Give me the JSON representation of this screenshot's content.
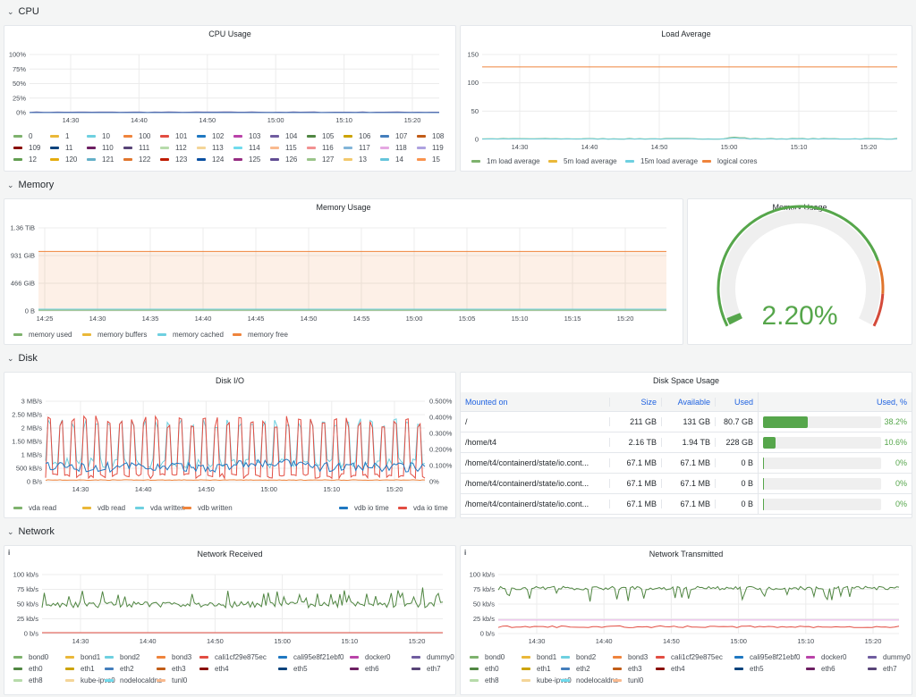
{
  "rows": {
    "cpu": "CPU",
    "memory": "Memory",
    "disk": "Disk",
    "network": "Network"
  },
  "cpu_usage": {
    "title": "CPU Usage",
    "yticks": [
      "100%",
      "75%",
      "50%",
      "25%",
      "0%"
    ],
    "xticks": [
      "14:30",
      "14:40",
      "14:50",
      "15:00",
      "15:10",
      "15:20"
    ],
    "legend": [
      [
        "0",
        "#7eb26d"
      ],
      [
        "1",
        "#eab839"
      ],
      [
        "10",
        "#6ed0e0"
      ],
      [
        "100",
        "#ef843c"
      ],
      [
        "101",
        "#e24d42"
      ],
      [
        "102",
        "#1f78c1"
      ],
      [
        "103",
        "#ba43a9"
      ],
      [
        "104",
        "#705da0"
      ],
      [
        "105",
        "#508642"
      ],
      [
        "106",
        "#cca300"
      ],
      [
        "107",
        "#447ebc"
      ],
      [
        "108",
        "#c15c17"
      ],
      [
        "109",
        "#890f02"
      ],
      [
        "11",
        "#0a437c"
      ],
      [
        "110",
        "#6d1f62"
      ],
      [
        "111",
        "#584477"
      ],
      [
        "112",
        "#b7dbab"
      ],
      [
        "113",
        "#f4d598"
      ],
      [
        "114",
        "#70dbed"
      ],
      [
        "115",
        "#f9ba8f"
      ],
      [
        "116",
        "#f29191"
      ],
      [
        "117",
        "#82b5d8"
      ],
      [
        "118",
        "#e5a8e2"
      ],
      [
        "119",
        "#aea2e0"
      ],
      [
        "12",
        "#629e51"
      ],
      [
        "120",
        "#e5ac0e"
      ],
      [
        "121",
        "#64b0c8"
      ],
      [
        "122",
        "#e0752d"
      ],
      [
        "123",
        "#bf1b00"
      ],
      [
        "124",
        "#0a50a1"
      ],
      [
        "125",
        "#962d82"
      ],
      [
        "126",
        "#614d93"
      ],
      [
        "127",
        "#9ac48a"
      ],
      [
        "13",
        "#f2c96d"
      ],
      [
        "14",
        "#65c5db"
      ],
      [
        "15",
        "#f9934e"
      ]
    ]
  },
  "load_average": {
    "title": "Load Average",
    "yticks": [
      "150",
      "100",
      "50",
      "0"
    ],
    "xticks": [
      "14:30",
      "14:40",
      "14:50",
      "15:00",
      "15:10",
      "15:20"
    ],
    "legend": [
      [
        "1m load average",
        "#7eb26d"
      ],
      [
        "5m load average",
        "#eab839"
      ],
      [
        "15m load average",
        "#6ed0e0"
      ],
      [
        "logical cores",
        "#ef843c"
      ]
    ]
  },
  "memory_usage": {
    "title": "Memory Usage",
    "yticks": [
      "1.36 TiB",
      "931 GiB",
      "466 GiB",
      "0 B"
    ],
    "xticks": [
      "14:25",
      "14:30",
      "14:35",
      "14:40",
      "14:45",
      "14:50",
      "14:55",
      "15:00",
      "15:05",
      "15:10",
      "15:15",
      "15:20"
    ],
    "legend": [
      [
        "memory used",
        "#7eb26d"
      ],
      [
        "memory buffers",
        "#eab839"
      ],
      [
        "memory cached",
        "#6ed0e0"
      ],
      [
        "memory free",
        "#ef843c"
      ]
    ]
  },
  "memory_gauge": {
    "title": "Memory Usage",
    "value": "2.20%",
    "fraction": 0.022,
    "colors": {
      "ok": "#56a64b",
      "warn": "#e0752d",
      "crit": "#d44a3a"
    }
  },
  "disk_io": {
    "title": "Disk I/O",
    "yticks_left": [
      "3 MB/s",
      "2.50 MB/s",
      "2 MB/s",
      "1.50 MB/s",
      "1 MB/s",
      "500 kB/s",
      "0 B/s"
    ],
    "yticks_right": [
      "0.500%",
      "0.400%",
      "0.300%",
      "0.200%",
      "0.100%",
      "0%"
    ],
    "xticks": [
      "14:30",
      "14:40",
      "14:50",
      "15:00",
      "15:10",
      "15:20"
    ],
    "legend_left": [
      [
        "vda read",
        "#7eb26d"
      ],
      [
        "vdb read",
        "#eab839"
      ],
      [
        "vda written",
        "#6ed0e0"
      ],
      [
        "vdb written",
        "#ef843c"
      ]
    ],
    "legend_right": [
      [
        "vdb io time",
        "#1f78c1"
      ],
      [
        "vda io time",
        "#e24d42"
      ]
    ]
  },
  "disk_space": {
    "title": "Disk Space Usage",
    "headers": [
      "Mounted on",
      "Size",
      "Available",
      "Used",
      "Used, %"
    ],
    "rows": [
      {
        "mount": "/",
        "size": "211 GB",
        "avail": "131 GB",
        "used": "80.7 GB",
        "pct": "38.2%",
        "frac": 0.382
      },
      {
        "mount": "/home/t4",
        "size": "2.16 TB",
        "avail": "1.94 TB",
        "used": "228 GB",
        "pct": "10.6%",
        "frac": 0.106
      },
      {
        "mount": "/home/t4/containerd/state/io.cont...",
        "size": "67.1 MB",
        "avail": "67.1 MB",
        "used": "0 B",
        "pct": "0%",
        "frac": 0
      },
      {
        "mount": "/home/t4/containerd/state/io.cont...",
        "size": "67.1 MB",
        "avail": "67.1 MB",
        "used": "0 B",
        "pct": "0%",
        "frac": 0
      },
      {
        "mount": "/home/t4/containerd/state/io.cont...",
        "size": "67.1 MB",
        "avail": "67.1 MB",
        "used": "0 B",
        "pct": "0%",
        "frac": 0
      }
    ]
  },
  "net_received": {
    "title": "Network Received",
    "info": "i",
    "yticks": [
      "100 kb/s",
      "75 kb/s",
      "50 kb/s",
      "25 kb/s",
      "0 b/s"
    ],
    "xticks": [
      "14:30",
      "14:40",
      "14:50",
      "15:00",
      "15:10",
      "15:20"
    ]
  },
  "net_transmitted": {
    "title": "Network Transmitted",
    "info": "i",
    "yticks": [
      "100 kb/s",
      "75 kb/s",
      "50 kb/s",
      "25 kb/s",
      "0 b/s"
    ],
    "xticks": [
      "14:30",
      "14:40",
      "14:50",
      "15:00",
      "15:10",
      "15:20"
    ]
  },
  "net_legend": [
    [
      "bond0",
      "#7eb26d"
    ],
    [
      "bond1",
      "#eab839"
    ],
    [
      "bond2",
      "#6ed0e0"
    ],
    [
      "bond3",
      "#ef843c"
    ],
    [
      "cali1cf29e875ec",
      "#e24d42"
    ],
    [
      "cali95e8f21ebf0",
      "#1f78c1"
    ],
    [
      "docker0",
      "#ba43a9"
    ],
    [
      "dummy0",
      "#705da0"
    ],
    [
      "eth0",
      "#508642"
    ],
    [
      "eth1",
      "#cca300"
    ],
    [
      "eth2",
      "#447ebc"
    ],
    [
      "eth3",
      "#c15c17"
    ],
    [
      "eth4",
      "#890f02"
    ],
    [
      "eth5",
      "#0a437c"
    ],
    [
      "eth6",
      "#6d1f62"
    ],
    [
      "eth7",
      "#584477"
    ],
    [
      "eth8",
      "#b7dbab"
    ],
    [
      "kube-ipvs0",
      "#f4d598"
    ],
    [
      "nodelocaldns",
      "#70dbed"
    ],
    [
      "tunl0",
      "#f9ba8f"
    ]
  ]
}
